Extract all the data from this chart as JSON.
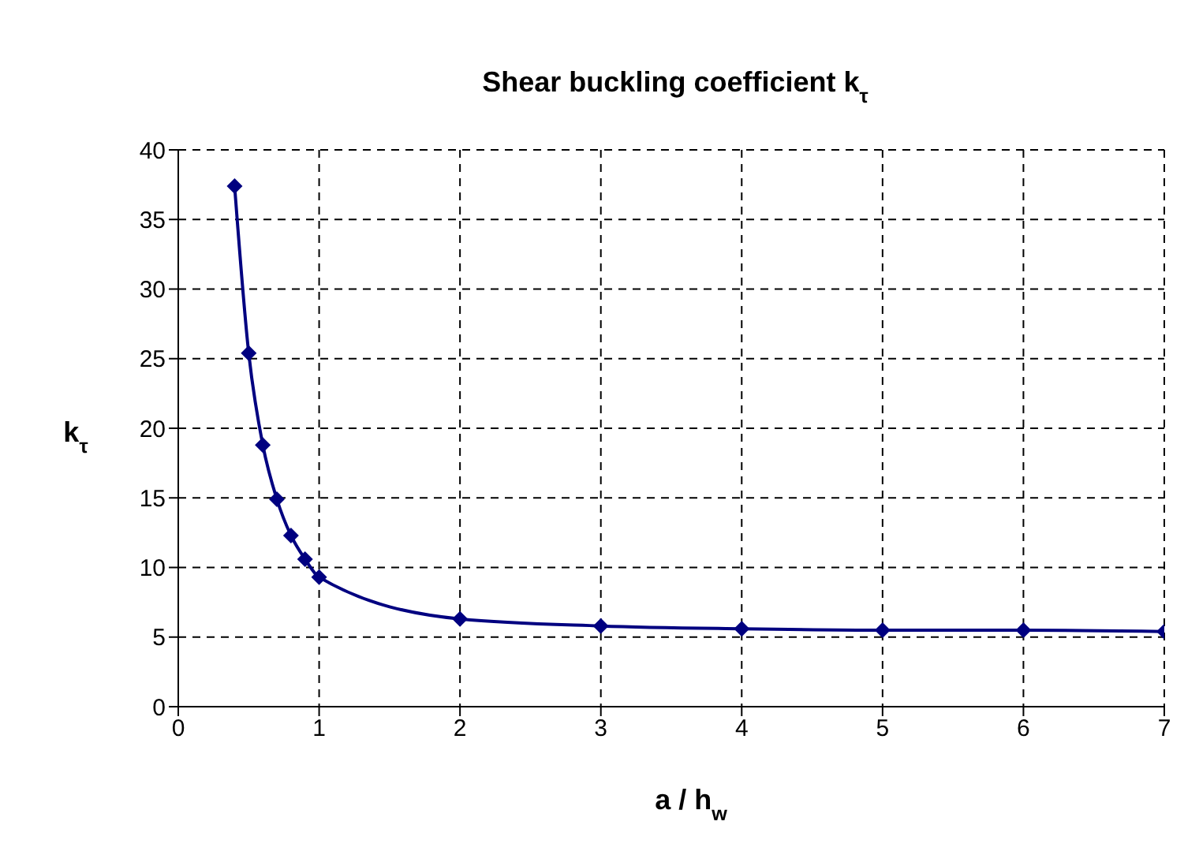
{
  "chart_data": {
    "type": "line",
    "title": "Shear buckling coefficient k$_{τ}$",
    "xlabel": "a / h$_{w}$",
    "ylabel": "k$_{τ}$",
    "x": [
      0.4,
      0.5,
      0.6,
      0.7,
      0.8,
      0.9,
      1,
      2,
      3,
      4,
      5,
      6,
      7
    ],
    "series": [
      {
        "color": "#000080",
        "values": [
          37.4,
          25.4,
          18.8,
          14.9,
          12.3,
          10.6,
          9.3,
          6.3,
          5.8,
          5.6,
          5.5,
          5.5,
          5.4
        ]
      }
    ],
    "xlim": [
      0,
      7
    ],
    "xticks": [
      0,
      1,
      2,
      3,
      4,
      5,
      6,
      7
    ],
    "ylim": [
      0,
      40
    ],
    "yticks": [
      0,
      5,
      10,
      15,
      20,
      25,
      30,
      35,
      40
    ],
    "grid": true,
    "marker": "diamond",
    "line_style": "solid"
  }
}
